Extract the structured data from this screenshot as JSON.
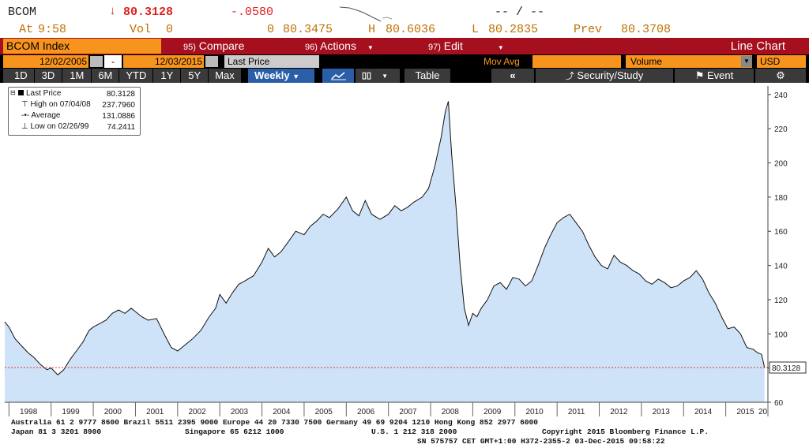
{
  "quote": {
    "ticker": "BCOM",
    "arrow": "↓",
    "price": "80.3128",
    "change": "-.0580",
    "spark_placeholder": "-- / --",
    "at_label": "At",
    "time": "9:58",
    "vol_label": "Vol",
    "vol": "0",
    "open_label": "0",
    "open": "80.3475",
    "high_label": "H",
    "high": "80.6036",
    "low_label": "L",
    "low": "80.2835",
    "prev_label": "Prev",
    "prev": "80.3708"
  },
  "toolbar": {
    "security": "BCOM Index",
    "compare_num": "95)",
    "compare": "Compare",
    "actions_num": "96)",
    "actions": "Actions",
    "edit_num": "97)",
    "edit": "Edit",
    "chart_type": "Line Chart"
  },
  "controls": {
    "start_date": "12/02/2005",
    "dash": "-",
    "end_date": "12/03/2015",
    "field": "Last Price",
    "mov_avg": "Mov Avg",
    "volume": "Volume",
    "currency": "USD"
  },
  "periods": [
    "1D",
    "3D",
    "1M",
    "6M",
    "YTD",
    "1Y",
    "5Y",
    "Max"
  ],
  "frequency": "Weekly",
  "table_btn": "Table",
  "security_study": "Security/Study",
  "event": "Event",
  "legend": {
    "last_label": "Last Price",
    "last_value": "80.3128",
    "high_label": "High on 07/04/08",
    "high_value": "237.7960",
    "avg_label": "Average",
    "avg_value": "131.0886",
    "low_label": "Low on 02/26/99",
    "low_value": "74.2411"
  },
  "footer": {
    "line1": "Australia 61 2 9777 8600 Brazil 5511 2395 9000 Europe 44 20 7330 7500 Germany 49 69 9204 1210 Hong Kong 852 2977 6000",
    "line2a": "Japan 81 3 3201 8900",
    "line2b": "Singapore 65 6212 1000",
    "line2c": "U.S. 1 212 318 2000",
    "line2d": "Copyright 2015 Bloomberg Finance L.P.",
    "line3": "SN 575757 CET  GMT+1:00 H372-2355-2 03-Dec-2015 09:58:22"
  },
  "colors": {
    "fill": "#cfe3f8",
    "line": "#111111",
    "last_price_line": "#e03030",
    "header_red": "#a50f1e",
    "orange": "#f7941d"
  },
  "chart_data": {
    "type": "area",
    "title": "",
    "xlabel": "",
    "ylabel": "",
    "ylim": [
      60,
      245
    ],
    "xlim": [
      1997.9,
      2016.0
    ],
    "yticks": [
      60,
      80,
      100,
      120,
      140,
      160,
      180,
      200,
      220,
      240
    ],
    "xtick_labels": [
      "1998",
      "1999",
      "2000",
      "2001",
      "2002",
      "2003",
      "2004",
      "2005",
      "2006",
      "2007",
      "2008",
      "2009",
      "2010",
      "2011",
      "2012",
      "2013",
      "2014",
      "2015",
      "20"
    ],
    "last_price_label": "80.3128",
    "series": [
      {
        "name": "Last Price",
        "x": [
          1997.9,
          1998.0,
          1998.15,
          1998.3,
          1998.45,
          1998.6,
          1998.75,
          1998.9,
          1999.0,
          1999.16,
          1999.3,
          1999.45,
          1999.6,
          1999.75,
          1999.9,
          2000.0,
          2000.15,
          2000.3,
          2000.45,
          2000.6,
          2000.75,
          2000.9,
          2001.0,
          2001.15,
          2001.3,
          2001.5,
          2001.7,
          2001.85,
          2002.0,
          2002.15,
          2002.35,
          2002.55,
          2002.75,
          2002.9,
          2003.0,
          2003.15,
          2003.3,
          2003.45,
          2003.6,
          2003.8,
          2004.0,
          2004.15,
          2004.3,
          2004.45,
          2004.6,
          2004.8,
          2005.0,
          2005.15,
          2005.3,
          2005.45,
          2005.6,
          2005.8,
          2006.0,
          2006.15,
          2006.3,
          2006.45,
          2006.6,
          2006.8,
          2007.0,
          2007.15,
          2007.3,
          2007.45,
          2007.6,
          2007.8,
          2007.95,
          2008.1,
          2008.25,
          2008.35,
          2008.42,
          2008.5,
          2008.6,
          2008.7,
          2008.8,
          2008.9,
          2009.0,
          2009.1,
          2009.2,
          2009.35,
          2009.5,
          2009.65,
          2009.8,
          2009.95,
          2010.1,
          2010.25,
          2010.4,
          2010.55,
          2010.7,
          2010.85,
          2011.0,
          2011.15,
          2011.3,
          2011.45,
          2011.6,
          2011.75,
          2011.9,
          2012.05,
          2012.2,
          2012.35,
          2012.5,
          2012.65,
          2012.8,
          2012.95,
          2013.1,
          2013.25,
          2013.4,
          2013.55,
          2013.7,
          2013.85,
          2014.0,
          2014.15,
          2014.3,
          2014.45,
          2014.6,
          2014.75,
          2014.9,
          2015.05,
          2015.2,
          2015.35,
          2015.5,
          2015.65,
          2015.75,
          2015.85,
          2015.92
        ],
        "y": [
          107,
          104,
          97,
          93,
          89,
          86,
          82,
          79,
          80,
          76,
          79,
          85,
          90,
          95,
          102,
          104,
          106,
          108,
          112,
          114,
          112,
          115,
          113,
          110,
          108,
          109,
          99,
          92,
          90,
          93,
          97,
          102,
          110,
          115,
          123,
          118,
          124,
          129,
          131,
          134,
          142,
          150,
          145,
          148,
          153,
          160,
          158,
          163,
          166,
          170,
          168,
          173,
          180,
          172,
          169,
          178,
          170,
          167,
          170,
          175,
          172,
          174,
          177,
          180,
          185,
          198,
          215,
          230,
          236,
          205,
          175,
          140,
          115,
          105,
          112,
          110,
          115,
          120,
          128,
          130,
          126,
          133,
          132,
          128,
          131,
          140,
          150,
          158,
          165,
          168,
          170,
          165,
          160,
          152,
          145,
          140,
          138,
          146,
          142,
          140,
          137,
          135,
          131,
          129,
          132,
          130,
          127,
          128,
          131,
          133,
          137,
          132,
          124,
          118,
          110,
          103,
          104,
          100,
          92,
          91,
          89,
          88,
          80.3
        ]
      }
    ]
  }
}
